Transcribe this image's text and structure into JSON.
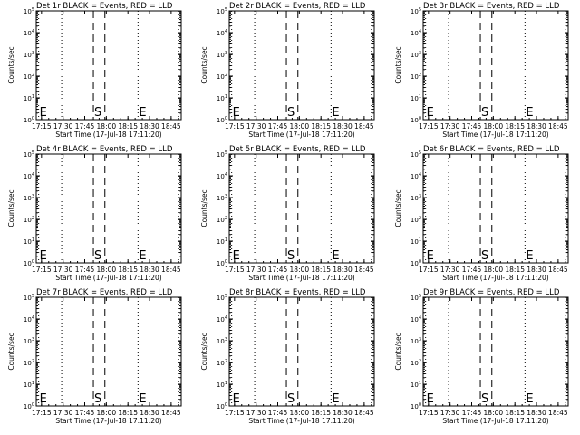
{
  "chart_data": [
    {
      "type": "line",
      "title": "Det 1r BLACK = Events, RED = LLD"
    },
    {
      "type": "line",
      "title": "Det 2r BLACK = Events, RED = LLD"
    },
    {
      "type": "line",
      "title": "Det 3r BLACK = Events, RED = LLD"
    },
    {
      "type": "line",
      "title": "Det 4r BLACK = Events, RED = LLD"
    },
    {
      "type": "line",
      "title": "Det 5r BLACK = Events, RED = LLD"
    },
    {
      "type": "line",
      "title": "Det 6r BLACK = Events, RED = LLD"
    },
    {
      "type": "line",
      "title": "Det 7r BLACK = Events, RED = LLD"
    },
    {
      "type": "line",
      "title": "Det 8r BLACK = Events, RED = LLD"
    },
    {
      "type": "line",
      "title": "Det 9r BLACK = Events, RED = LLD"
    }
  ],
  "shared": {
    "xlabel": "Start Time (17-Jul-18 17:11:20)",
    "ylabel": "Counts/sec",
    "x_ticks": [
      "17:15",
      "17:30",
      "17:45",
      "18:00",
      "18:15",
      "18:30",
      "18:45"
    ],
    "y_ticks": [
      {
        "base": "10",
        "exp": "0"
      },
      {
        "base": "10",
        "exp": "1"
      },
      {
        "base": "10",
        "exp": "2"
      },
      {
        "base": "10",
        "exp": "3"
      },
      {
        "base": "10",
        "exp": "4"
      },
      {
        "base": "10",
        "exp": "5"
      }
    ],
    "y_scale": "log",
    "ylim": [
      1,
      100000
    ],
    "x_range": [
      "17:11:20",
      "18:52"
    ],
    "dotted_lines": [
      "17:13",
      "17:29",
      "18:22",
      "18:50"
    ],
    "dashed_lines": [
      "17:51",
      "17:59"
    ],
    "markers": [
      {
        "label": "E",
        "time": "17:13"
      },
      {
        "label": "S",
        "time": "17:51"
      },
      {
        "label": "E",
        "time": "18:22"
      }
    ],
    "axis_color": "#000000",
    "background": "#ffffff"
  }
}
